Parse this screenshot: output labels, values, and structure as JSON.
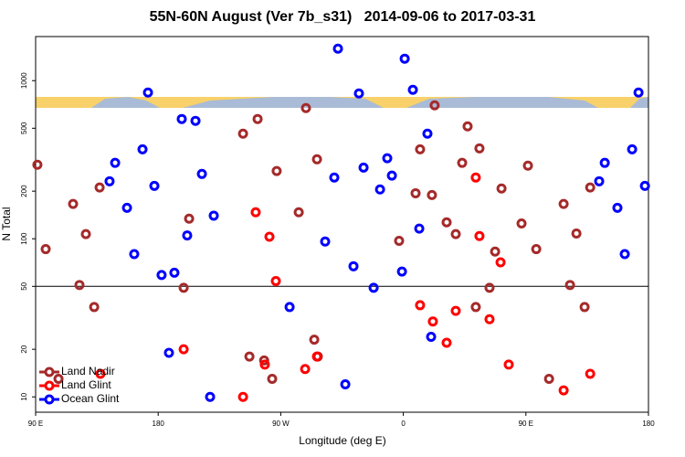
{
  "chart_data": {
    "type": "scatter",
    "title": "55N-60N August (Ver 7b_s31)   2014-09-06 to 2017-03-31",
    "x_label": "Longitude (deg E)",
    "y_label": "N Total",
    "log_y": true,
    "xlim": [
      90,
      540
    ],
    "ylim": [
      8,
      1900
    ],
    "xticks": [
      {
        "value": 90,
        "label": "90 E"
      },
      180,
      {
        "value": 270,
        "label": "90 W"
      },
      {
        "value": 360,
        "label": "0"
      },
      {
        "value": 450,
        "label": "90 E"
      },
      {
        "value": 540,
        "label": "180"
      }
    ],
    "yticks": [
      10,
      20,
      50,
      100,
      200,
      500,
      1000
    ],
    "reference_line": 50,
    "legend": "lower left",
    "series": [
      {
        "name": "Land Nadir",
        "color": "#a52a2a",
        "x": [
          91.3,
          97.4,
          106.8,
          117.5,
          122.2,
          126.9,
          133,
          137,
          198.7,
          202.7,
          242.3,
          247,
          253,
          257.8,
          263.7,
          267,
          283.2,
          288.5,
          294.6,
          296.6,
          297.2,
          356.9,
          369,
          372.3,
          381,
          383,
          391.8,
          398.5,
          403.2,
          407.2,
          413.2,
          415.9,
          423.3,
          427.4,
          432.1,
          446.8,
          451.5,
          457.6,
          467,
          477.7,
          482.4,
          487.1,
          493.1,
          497.2
        ],
        "values": [
          294,
          86,
          13,
          166,
          51,
          107,
          37,
          211,
          49,
          134,
          462,
          18,
          572,
          17,
          13,
          268,
          147,
          671,
          23,
          318,
          18,
          97,
          194,
          368,
          189,
          698,
          127,
          107,
          302,
          514,
          37,
          373,
          49,
          83,
          208,
          125,
          290,
          86,
          13,
          166,
          51,
          108,
          37,
          211
        ]
      },
      {
        "name": "Land Glint",
        "color": "#ff0000",
        "x": [
          137.6,
          198.7,
          242.3,
          251.6,
          258.3,
          261.7,
          266.4,
          287.9,
          296.6,
          372.3,
          381.7,
          391.8,
          398.5,
          413.2,
          415.9,
          423.3,
          431.4,
          437.4,
          477.7,
          497.2
        ],
        "values": [
          14,
          20,
          10,
          147,
          16,
          103,
          54,
          15,
          18,
          38,
          30,
          22,
          35,
          244,
          104,
          31,
          71,
          16,
          11,
          14
        ]
      },
      {
        "name": "Ocean Glint",
        "color": "#0000ff",
        "x": [
          144.3,
          148.4,
          157.1,
          162.4,
          168.5,
          172.5,
          177.2,
          182.5,
          187.9,
          191.9,
          197.3,
          201.3,
          207.4,
          212.1,
          218.1,
          220.8,
          276.5,
          302.6,
          309.3,
          312,
          317.4,
          323.4,
          327.4,
          330.8,
          338.2,
          342.9,
          348.2,
          351.6,
          359,
          361,
          367,
          371.7,
          377.7,
          380.4,
          503.8,
          507.9,
          517.2,
          522.6,
          528,
          532.7,
          537.4
        ],
        "values": [
          231,
          302,
          157,
          80,
          368,
          841,
          216,
          59,
          19,
          61,
          572,
          105,
          557,
          257,
          10,
          140,
          37,
          96,
          244,
          1592,
          12,
          67,
          830,
          282,
          49,
          205,
          323,
          251,
          62,
          1377,
          875,
          116,
          462,
          24,
          231,
          302,
          157,
          80,
          368,
          841,
          216
        ]
      }
    ]
  }
}
